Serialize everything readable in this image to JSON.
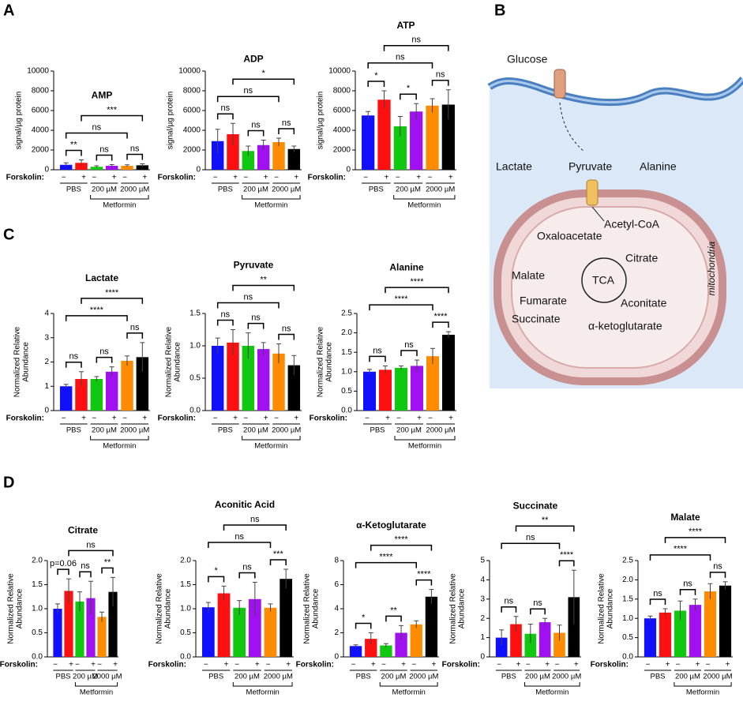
{
  "panel_labels": [
    "A",
    "B",
    "C",
    "D"
  ],
  "diagram": {
    "nodes": [
      "Glucose",
      "Lactate",
      "Pyruvate",
      "Alanine",
      "Acetyl-CoA",
      "Oxaloacetate",
      "Citrate",
      "Malate",
      "TCA",
      "Aconitate",
      "Fumarate",
      "Succinate",
      "α-ketoglutarate",
      "mitochondria"
    ]
  },
  "chart_data": [
    {
      "type": "bar",
      "title": "AMP",
      "ylabel": "signal/µg protein",
      "categories": [
        "−",
        "+",
        "−",
        "+",
        "−",
        "+"
      ],
      "groups": [
        "PBS",
        "200 µM",
        "2000 µM"
      ],
      "group_title": "Metformin",
      "row_label": "Forskolin:",
      "values": [
        500,
        700,
        300,
        400,
        400,
        450
      ],
      "errors": [
        200,
        300,
        100,
        120,
        100,
        150
      ],
      "colors": [
        "#1010ff",
        "#ff1010",
        "#10c810",
        "#a010f0",
        "#ff8c00",
        "#000000"
      ],
      "ylim": [
        0,
        10000
      ],
      "yticks": [
        0,
        2000,
        4000,
        6000,
        8000,
        10000
      ],
      "annotations": [
        "**",
        "ns",
        "ns",
        "ns",
        "***"
      ]
    },
    {
      "type": "bar",
      "title": "ADP",
      "ylabel": "signal/µg protein",
      "categories": [
        "−",
        "+",
        "−",
        "+",
        "−",
        "+"
      ],
      "groups": [
        "PBS",
        "200 µM",
        "2000 µM"
      ],
      "group_title": "Metformin",
      "row_label": "Forskolin:",
      "values": [
        2900,
        3600,
        1900,
        2500,
        2800,
        2100
      ],
      "errors": [
        1200,
        1100,
        500,
        500,
        400,
        300
      ],
      "colors": [
        "#1010ff",
        "#ff1010",
        "#10c810",
        "#a010f0",
        "#ff8c00",
        "#000000"
      ],
      "ylim": [
        0,
        10000
      ],
      "yticks": [
        0,
        2000,
        4000,
        6000,
        8000,
        10000
      ],
      "annotations": [
        "ns",
        "ns",
        "ns",
        "ns",
        "*"
      ]
    },
    {
      "type": "bar",
      "title": "ATP",
      "ylabel": "signal/µg protein",
      "categories": [
        "−",
        "+",
        "−",
        "+",
        "−",
        "+"
      ],
      "groups": [
        "PBS",
        "200 µM",
        "2000 µM"
      ],
      "group_title": "Metformin",
      "row_label": "Forskolin:",
      "values": [
        5500,
        7100,
        4400,
        5900,
        6500,
        6600
      ],
      "errors": [
        400,
        900,
        1000,
        800,
        700,
        1500
      ],
      "colors": [
        "#1010ff",
        "#ff1010",
        "#10c810",
        "#a010f0",
        "#ff8c00",
        "#000000"
      ],
      "ylim": [
        0,
        10000
      ],
      "yticks": [
        0,
        2000,
        4000,
        6000,
        8000,
        10000
      ],
      "annotations": [
        "*",
        "*",
        "ns",
        "ns",
        "ns"
      ]
    },
    {
      "type": "bar",
      "title": "Lactate",
      "ylabel": [
        "Normalized Relative",
        "Abundance"
      ],
      "categories": [
        "−",
        "+",
        "−",
        "+",
        "−",
        "+"
      ],
      "groups": [
        "PBS",
        "200 µM",
        "2000 µM"
      ],
      "group_title": "Metformin",
      "row_label": "Forskolin:",
      "values": [
        1.0,
        1.3,
        1.3,
        1.6,
        2.05,
        2.2
      ],
      "errors": [
        0.08,
        0.3,
        0.1,
        0.2,
        0.2,
        0.6
      ],
      "colors": [
        "#1010ff",
        "#ff1010",
        "#10c810",
        "#a010f0",
        "#ff8c00",
        "#000000"
      ],
      "ylim": [
        0,
        4
      ],
      "yticks": [
        0,
        1,
        2,
        3,
        4
      ],
      "annotations": [
        "ns",
        "ns",
        "ns",
        "****",
        "****"
      ]
    },
    {
      "type": "bar",
      "title": "Pyruvate",
      "ylabel": [
        "Normalized Relative",
        "Abundance"
      ],
      "categories": [
        "−",
        "+",
        "−",
        "+",
        "−",
        "+"
      ],
      "groups": [
        "PBS",
        "200 µM",
        "2000 µM"
      ],
      "group_title": "Metformin",
      "row_label": "Forskolin:",
      "values": [
        1.0,
        1.05,
        1.0,
        0.95,
        0.88,
        0.7
      ],
      "errors": [
        0.12,
        0.2,
        0.2,
        0.1,
        0.15,
        0.15
      ],
      "colors": [
        "#1010ff",
        "#ff1010",
        "#10c810",
        "#a010f0",
        "#ff8c00",
        "#000000"
      ],
      "ylim": [
        0,
        1.5
      ],
      "yticks": [
        {
          "value": 0,
          "label": "0.0"
        },
        0.5,
        {
          "value": 1,
          "label": "1.0"
        },
        1.5
      ],
      "annotations": [
        "ns",
        "ns",
        "ns",
        "ns",
        "**"
      ]
    },
    {
      "type": "bar",
      "title": "Alanine",
      "ylabel": [
        "Normalized Relative",
        "Abundance"
      ],
      "categories": [
        "−",
        "+",
        "−",
        "+",
        "−",
        "+"
      ],
      "groups": [
        "PBS",
        "200 µM",
        "2000 µM"
      ],
      "group_title": "Metformin",
      "row_label": "Forskolin:",
      "values": [
        1.0,
        1.05,
        1.1,
        1.15,
        1.4,
        1.95
      ],
      "errors": [
        0.06,
        0.1,
        0.05,
        0.15,
        0.2,
        0.08
      ],
      "colors": [
        "#1010ff",
        "#ff1010",
        "#10c810",
        "#a010f0",
        "#ff8c00",
        "#000000"
      ],
      "ylim": [
        0,
        2.5
      ],
      "yticks": [
        {
          "value": 0,
          "label": "0.0"
        },
        0.5,
        {
          "value": 1,
          "label": "1.0"
        },
        1.5,
        {
          "value": 2,
          "label": "2.0"
        },
        2.5
      ],
      "annotations": [
        "ns",
        "ns",
        "****",
        "****",
        "****"
      ]
    },
    {
      "type": "bar",
      "title": "Citrate",
      "ylabel": [
        "Normalized Relative",
        "Abundance"
      ],
      "categories": [
        "−",
        "+",
        "−",
        "+",
        "−",
        "+"
      ],
      "groups": [
        "PBS",
        "200 µM",
        "2000 µM"
      ],
      "group_title": "Metformin",
      "row_label": "Forskolin:",
      "values": [
        1.0,
        1.37,
        1.15,
        1.22,
        0.83,
        1.35
      ],
      "errors": [
        0.1,
        0.25,
        0.2,
        0.35,
        0.1,
        0.3
      ],
      "colors": [
        "#1010ff",
        "#ff1010",
        "#10c810",
        "#a010f0",
        "#ff8c00",
        "#000000"
      ],
      "ylim": [
        0,
        2.0
      ],
      "yticks": [
        {
          "value": 0,
          "label": "0.0"
        },
        0.5,
        {
          "value": 1,
          "label": "1.0"
        },
        1.5,
        {
          "value": 2,
          "label": "2.0"
        }
      ],
      "annotations": [
        "p=0.06",
        "ns",
        "**",
        "ns"
      ]
    },
    {
      "type": "bar",
      "title": "Aconitic Acid",
      "ylabel": [
        "Normalized Relative",
        "Abundance"
      ],
      "categories": [
        "−",
        "+",
        "−",
        "+",
        "−",
        "+"
      ],
      "groups": [
        "PBS",
        "200 µM",
        "2000 µM"
      ],
      "group_title": "Metformin",
      "row_label": "Forskolin:",
      "values": [
        1.03,
        1.32,
        1.02,
        1.2,
        1.02,
        1.62
      ],
      "errors": [
        0.1,
        0.15,
        0.15,
        0.35,
        0.08,
        0.2
      ],
      "colors": [
        "#1010ff",
        "#ff1010",
        "#10c810",
        "#a010f0",
        "#ff8c00",
        "#000000"
      ],
      "ylim": [
        0,
        2.0
      ],
      "yticks": [
        {
          "value": 0,
          "label": "0.0"
        },
        0.5,
        {
          "value": 1,
          "label": "1.0"
        },
        1.5,
        {
          "value": 2,
          "label": "2.0"
        }
      ],
      "annotations": [
        "*",
        "ns",
        "***",
        "ns",
        "ns"
      ]
    },
    {
      "type": "bar",
      "title": "α-Ketoglutarate",
      "ylabel": [
        "Normalized Relative",
        "Abundance"
      ],
      "categories": [
        "−",
        "+",
        "−",
        "+",
        "−",
        "+"
      ],
      "groups": [
        "PBS",
        "200 µM",
        "2000 µM"
      ],
      "group_title": "Metformin",
      "row_label": "Forskolin:",
      "values": [
        0.9,
        1.5,
        0.95,
        2.0,
        2.7,
        5.0
      ],
      "errors": [
        0.1,
        0.5,
        0.15,
        0.6,
        0.3,
        0.6
      ],
      "colors": [
        "#1010ff",
        "#ff1010",
        "#10c810",
        "#a010f0",
        "#ff8c00",
        "#000000"
      ],
      "ylim": [
        0,
        8
      ],
      "yticks": [
        0,
        2,
        4,
        6,
        8
      ],
      "annotations": [
        "*",
        "**",
        "****",
        "****",
        "****"
      ]
    },
    {
      "type": "bar",
      "title": "Succinate",
      "ylabel": [
        "Normalized Relative",
        "Abundance"
      ],
      "categories": [
        "−",
        "+",
        "−",
        "+",
        "−",
        "+"
      ],
      "groups": [
        "PBS",
        "200 µM",
        "2000 µM"
      ],
      "group_title": "Metformin",
      "row_label": "Forskolin:",
      "values": [
        1.0,
        1.7,
        1.2,
        1.8,
        1.25,
        3.1
      ],
      "errors": [
        0.4,
        0.4,
        0.5,
        0.2,
        0.4,
        1.4
      ],
      "colors": [
        "#1010ff",
        "#ff1010",
        "#10c810",
        "#a010f0",
        "#ff8c00",
        "#000000"
      ],
      "ylim": [
        0,
        5
      ],
      "yticks": [
        0,
        1,
        2,
        3,
        4,
        5
      ],
      "annotations": [
        "ns",
        "ns",
        "****",
        "ns",
        "**"
      ]
    },
    {
      "type": "bar",
      "title": "Malate",
      "ylabel": [
        "Normalized Relative",
        "Abundance"
      ],
      "categories": [
        "−",
        "+",
        "−",
        "+",
        "−",
        "+"
      ],
      "groups": [
        "PBS",
        "200 µM",
        "2000 µM"
      ],
      "group_title": "Metformin",
      "row_label": "Forskolin:",
      "values": [
        1.0,
        1.15,
        1.2,
        1.35,
        1.7,
        1.85
      ],
      "errors": [
        0.06,
        0.1,
        0.25,
        0.15,
        0.2,
        0.1
      ],
      "colors": [
        "#1010ff",
        "#ff1010",
        "#10c810",
        "#a010f0",
        "#ff8c00",
        "#000000"
      ],
      "ylim": [
        0,
        2.5
      ],
      "yticks": [
        {
          "value": 0,
          "label": "0.0"
        },
        0.5,
        {
          "value": 1,
          "label": "1.0"
        },
        1.5,
        {
          "value": 2,
          "label": "2.0"
        },
        2.5
      ],
      "annotations": [
        "ns",
        "ns",
        "ns",
        "****",
        "****"
      ]
    }
  ]
}
